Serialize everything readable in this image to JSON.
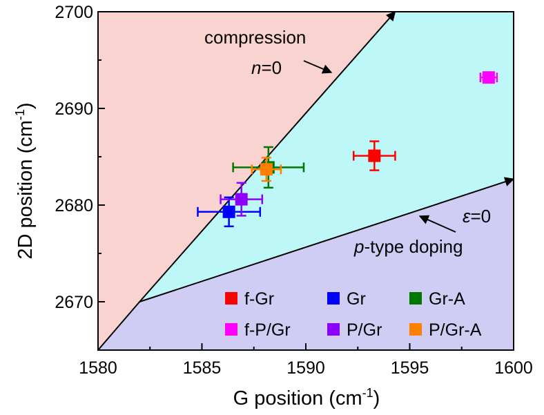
{
  "chart_data": {
    "type": "scatter",
    "xlabel": "G position (cm",
    "xlabel_sup": "-1",
    "xlabel_end": ")",
    "ylabel": "2D position (cm",
    "ylabel_sup": "-1",
    "ylabel_end": ")",
    "xlim": [
      1580,
      1600
    ],
    "ylim": [
      2665,
      2700
    ],
    "xticks": [
      "1580",
      "1585",
      "1590",
      "1595",
      "1600"
    ],
    "yticks": [
      "2670",
      "2680",
      "2690",
      "2700"
    ],
    "xtick_values": [
      1580,
      1585,
      1590,
      1595,
      1600
    ],
    "ytick_values": [
      2670,
      2680,
      2690,
      2700
    ],
    "grid": false,
    "regions": [
      {
        "color": "#f9d3d0",
        "polygon": [
          [
            1580,
            2665
          ],
          [
            1580,
            2700
          ],
          [
            1594.3,
            2700
          ],
          [
            1582,
            2670
          ]
        ]
      },
      {
        "color": "#bdf7f7",
        "polygon": [
          [
            1582,
            2670
          ],
          [
            1594.3,
            2700
          ],
          [
            1600,
            2700
          ],
          [
            1600,
            2682.7
          ]
        ]
      },
      {
        "color": "#cfcdf4",
        "polygon": [
          [
            1580,
            2665
          ],
          [
            1582,
            2670
          ],
          [
            1600,
            2682.7
          ],
          [
            1600,
            2665
          ]
        ]
      }
    ],
    "lines": [
      {
        "name": "compression",
        "points": [
          [
            1580,
            2665
          ],
          [
            1582,
            2670
          ],
          [
            1594.3,
            2700
          ]
        ]
      },
      {
        "name": "p-type doping",
        "points": [
          [
            1582,
            2670
          ],
          [
            1600,
            2682.7
          ]
        ]
      }
    ],
    "annotations": {
      "compression": "compression",
      "n_var": "n",
      "n_eq": "=0",
      "eps_var": "ε",
      "eps_eq": "=0",
      "p_var": "p",
      "p_rest": "-type doping"
    },
    "series": [
      {
        "name": "f-Gr",
        "color": "#ff0000",
        "x": 1593.3,
        "y": 2685.1,
        "xerr": 1.0,
        "yerr": 1.5
      },
      {
        "name": "Gr",
        "color": "#0000ff",
        "x": 1586.3,
        "y": 2679.3,
        "xerr": 1.5,
        "yerr": 1.5
      },
      {
        "name": "Gr-A",
        "color": "#007700",
        "x": 1588.2,
        "y": 2683.9,
        "xerr": 1.7,
        "yerr": 2.1
      },
      {
        "name": "f-P/Gr",
        "color": "#ff00ff",
        "x": 1598.8,
        "y": 2693.2,
        "xerr": 0.4,
        "yerr": 0.4
      },
      {
        "name": "P/Gr",
        "color": "#8b00ff",
        "x": 1586.9,
        "y": 2680.6,
        "xerr": 1.0,
        "yerr": 1.7
      },
      {
        "name": "P/Gr-A",
        "color": "#ff8000",
        "x": 1588.1,
        "y": 2683.7,
        "xerr": 0.7,
        "yerr": 1.2
      }
    ],
    "legend": {
      "placement": "lower-right",
      "entries": [
        "f-Gr",
        "Gr",
        "Gr-A",
        "f-P/Gr",
        "P/Gr",
        "P/Gr-A"
      ]
    }
  }
}
